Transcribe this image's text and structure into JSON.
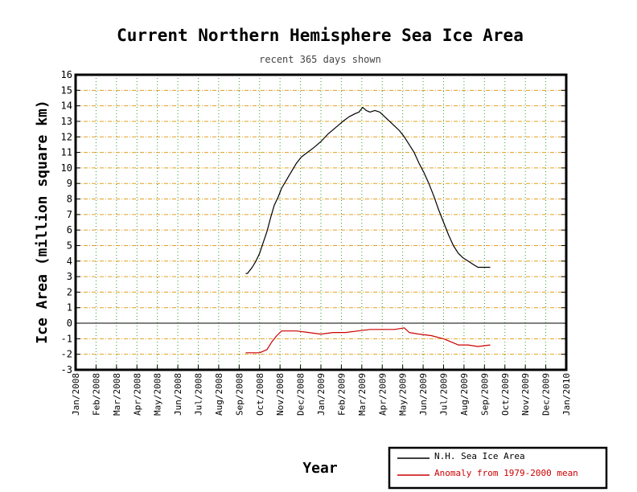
{
  "chart_data": {
    "type": "line",
    "title": "Current Northern Hemisphere Sea Ice Area",
    "subtitle": "recent 365 days shown",
    "xlabel": "Year",
    "ylabel": "Ice Area (million square km)",
    "ylim": [
      -3,
      16
    ],
    "yticks": [
      16,
      15,
      14,
      13,
      12,
      11,
      10,
      9,
      8,
      7,
      6,
      5,
      4,
      3,
      2,
      1,
      0,
      -1,
      -2,
      -3
    ],
    "xlim": [
      2008.0,
      2010.0
    ],
    "xticks": [
      {
        "label": "Jan/2008",
        "x": 2008.0
      },
      {
        "label": "Feb/2008",
        "x": 2008.0833
      },
      {
        "label": "Mar/2008",
        "x": 2008.1667
      },
      {
        "label": "Apr/2008",
        "x": 2008.25
      },
      {
        "label": "May/2008",
        "x": 2008.3333
      },
      {
        "label": "Jun/2008",
        "x": 2008.4167
      },
      {
        "label": "Jul/2008",
        "x": 2008.5
      },
      {
        "label": "Aug/2008",
        "x": 2008.5833
      },
      {
        "label": "Sep/2008",
        "x": 2008.6667
      },
      {
        "label": "Oct/2008",
        "x": 2008.75
      },
      {
        "label": "Nov/2008",
        "x": 2008.8333
      },
      {
        "label": "Dec/2008",
        "x": 2008.9167
      },
      {
        "label": "Jan/2009",
        "x": 2009.0
      },
      {
        "label": "Feb/2009",
        "x": 2009.0833
      },
      {
        "label": "Mar/2009",
        "x": 2009.1667
      },
      {
        "label": "Apr/2009",
        "x": 2009.25
      },
      {
        "label": "May/2009",
        "x": 2009.3333
      },
      {
        "label": "Jun/2009",
        "x": 2009.4167
      },
      {
        "label": "Jul/2009",
        "x": 2009.5
      },
      {
        "label": "Aug/2009",
        "x": 2009.5833
      },
      {
        "label": "Sep/2009",
        "x": 2009.6667
      },
      {
        "label": "Oct/2009",
        "x": 2009.75
      },
      {
        "label": "Nov/2009",
        "x": 2009.8333
      },
      {
        "label": "Dec/2009",
        "x": 2009.9167
      },
      {
        "label": "Jan/2010",
        "x": 2010.0
      }
    ],
    "grid": true,
    "legend_position": "bottom-right",
    "series": [
      {
        "name": "N.H. Sea Ice Area",
        "color": "#000000",
        "points": [
          [
            2008.693,
            3.2
          ],
          [
            2008.7,
            3.2
          ],
          [
            2008.71,
            3.4
          ],
          [
            2008.72,
            3.6
          ],
          [
            2008.735,
            4.0
          ],
          [
            2008.75,
            4.5
          ],
          [
            2008.765,
            5.2
          ],
          [
            2008.78,
            5.9
          ],
          [
            2008.795,
            6.8
          ],
          [
            2008.81,
            7.6
          ],
          [
            2008.825,
            8.1
          ],
          [
            2008.84,
            8.7
          ],
          [
            2008.855,
            9.1
          ],
          [
            2008.87,
            9.5
          ],
          [
            2008.885,
            9.9
          ],
          [
            2008.9,
            10.3
          ],
          [
            2008.92,
            10.7
          ],
          [
            2008.945,
            11.0
          ],
          [
            2008.97,
            11.3
          ],
          [
            2009.0,
            11.7
          ],
          [
            2009.03,
            12.2
          ],
          [
            2009.06,
            12.6
          ],
          [
            2009.09,
            13.0
          ],
          [
            2009.115,
            13.3
          ],
          [
            2009.14,
            13.5
          ],
          [
            2009.155,
            13.6
          ],
          [
            2009.17,
            13.9
          ],
          [
            2009.185,
            13.7
          ],
          [
            2009.2,
            13.6
          ],
          [
            2009.22,
            13.7
          ],
          [
            2009.24,
            13.6
          ],
          [
            2009.26,
            13.3
          ],
          [
            2009.28,
            13.0
          ],
          [
            2009.3,
            12.7
          ],
          [
            2009.32,
            12.4
          ],
          [
            2009.34,
            12.0
          ],
          [
            2009.36,
            11.5
          ],
          [
            2009.38,
            11.0
          ],
          [
            2009.4,
            10.3
          ],
          [
            2009.42,
            9.7
          ],
          [
            2009.44,
            9.0
          ],
          [
            2009.46,
            8.2
          ],
          [
            2009.48,
            7.3
          ],
          [
            2009.5,
            6.5
          ],
          [
            2009.52,
            5.7
          ],
          [
            2009.54,
            5.0
          ],
          [
            2009.56,
            4.5
          ],
          [
            2009.58,
            4.2
          ],
          [
            2009.6,
            4.0
          ],
          [
            2009.62,
            3.8
          ],
          [
            2009.64,
            3.6
          ],
          [
            2009.66,
            3.6
          ],
          [
            2009.69,
            3.6
          ]
        ]
      },
      {
        "name": "Anomaly from 1979-2000 mean",
        "color": "#cc0000",
        "points": [
          [
            2008.693,
            -1.9
          ],
          [
            2008.72,
            -1.9
          ],
          [
            2008.75,
            -1.9
          ],
          [
            2008.78,
            -1.7
          ],
          [
            2008.8,
            -1.2
          ],
          [
            2008.82,
            -0.8
          ],
          [
            2008.84,
            -0.5
          ],
          [
            2008.86,
            -0.5
          ],
          [
            2008.9,
            -0.5
          ],
          [
            2008.95,
            -0.6
          ],
          [
            2009.0,
            -0.7
          ],
          [
            2009.05,
            -0.6
          ],
          [
            2009.1,
            -0.6
          ],
          [
            2009.15,
            -0.5
          ],
          [
            2009.2,
            -0.4
          ],
          [
            2009.25,
            -0.4
          ],
          [
            2009.3,
            -0.4
          ],
          [
            2009.34,
            -0.3
          ],
          [
            2009.36,
            -0.6
          ],
          [
            2009.4,
            -0.7
          ],
          [
            2009.45,
            -0.8
          ],
          [
            2009.5,
            -1.0
          ],
          [
            2009.53,
            -1.2
          ],
          [
            2009.56,
            -1.4
          ],
          [
            2009.6,
            -1.4
          ],
          [
            2009.64,
            -1.5
          ],
          [
            2009.69,
            -1.4
          ]
        ]
      }
    ]
  }
}
